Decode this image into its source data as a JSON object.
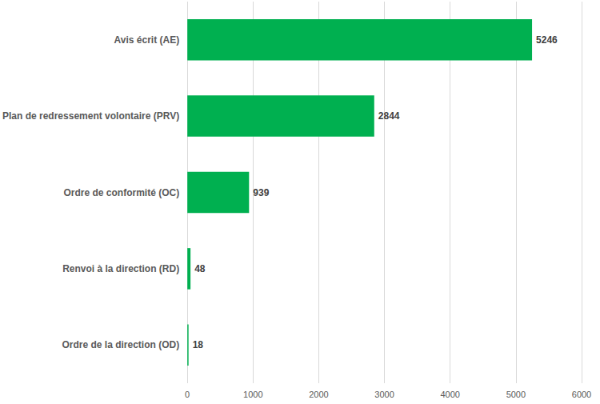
{
  "chart_data": {
    "type": "bar",
    "orientation": "horizontal",
    "categories": [
      "Avis écrit (AE)",
      "Plan de redressement volontaire (PRV)",
      "Ordre de conformité (OC)",
      "Renvoi à la direction (RD)",
      "Ordre de la direction (OD)"
    ],
    "values": [
      5246,
      2844,
      939,
      48,
      18
    ],
    "color": "#00b050",
    "xlim": [
      0,
      6000
    ],
    "xticks": [
      0,
      1000,
      2000,
      3000,
      4000,
      5000,
      6000
    ],
    "grid": true,
    "data_labels": true
  }
}
